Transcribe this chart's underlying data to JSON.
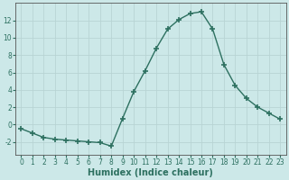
{
  "x": [
    0,
    1,
    2,
    3,
    4,
    5,
    6,
    7,
    8,
    9,
    10,
    11,
    12,
    13,
    14,
    15,
    16,
    17,
    18,
    19,
    20,
    21,
    22,
    23
  ],
  "y": [
    -0.5,
    -1.0,
    -1.5,
    -1.7,
    -1.8,
    -1.9,
    -2.0,
    -2.1,
    -2.5,
    0.7,
    3.8,
    6.2,
    8.8,
    11.0,
    12.1,
    12.8,
    13.0,
    11.0,
    6.9,
    4.5,
    3.0,
    2.0,
    1.3,
    0.6
  ],
  "line_color": "#2d7060",
  "marker": "+",
  "markersize": 4,
  "linewidth": 1.0,
  "bg_color": "#cce8e8",
  "grid_color": "#b8d4d4",
  "xlabel": "Humidex (Indice chaleur)",
  "xlabel_fontsize": 7,
  "xlabel_weight": "bold",
  "ylim": [
    -3.5,
    14.0
  ],
  "xlim": [
    -0.5,
    23.5
  ],
  "yticks": [
    -2,
    0,
    2,
    4,
    6,
    8,
    10,
    12
  ],
  "xticks": [
    0,
    1,
    2,
    3,
    4,
    5,
    6,
    7,
    8,
    9,
    10,
    11,
    12,
    13,
    14,
    15,
    16,
    17,
    18,
    19,
    20,
    21,
    22,
    23
  ],
  "tick_fontsize": 5.5,
  "spine_color": "#555555"
}
